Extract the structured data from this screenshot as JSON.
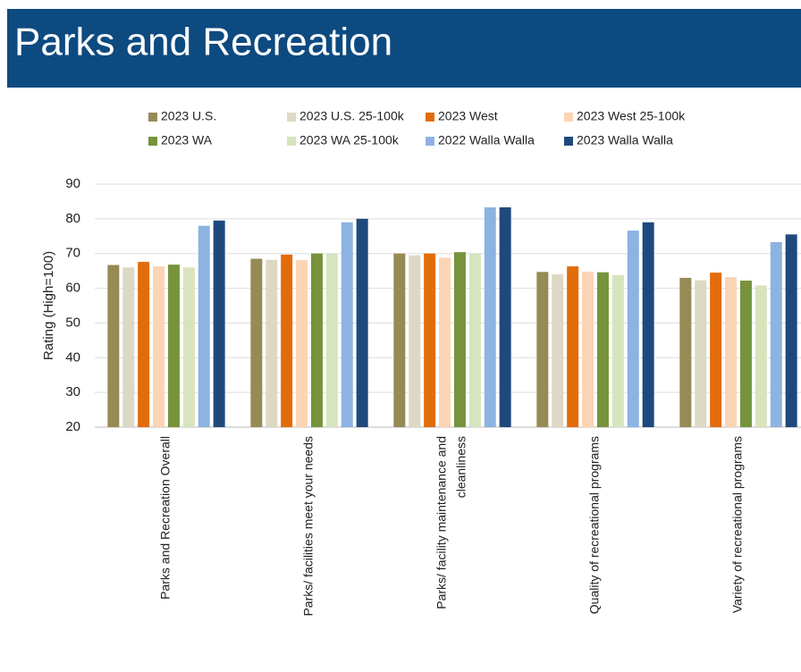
{
  "chart_data": {
    "type": "bar",
    "title": "Parks and Recreation",
    "y_label": "Rating (High=100)",
    "categories": [
      [
        "Parks and Recreation Overall"
      ],
      [
        "Parks/ facilities meet your needs"
      ],
      [
        "Parks/ facility maintenance and",
        "cleanliness"
      ],
      [
        "Quality of recreational programs"
      ],
      [
        "Variety of recreational programs"
      ]
    ],
    "series": [
      {
        "name": "2023 U.S.",
        "color": "#968a55",
        "values": [
          66.7,
          68.5,
          70,
          64.7,
          63
        ]
      },
      {
        "name": "2023 U.S. 25-100k",
        "color": "#ddd8c3",
        "values": [
          66,
          68.2,
          69.5,
          64,
          62.3
        ]
      },
      {
        "name": "2023 West",
        "color": "#e36c0a",
        "values": [
          67.6,
          69.7,
          70,
          66.3,
          64.5
        ]
      },
      {
        "name": "2023 West 25-100k",
        "color": "#fbd4b4",
        "values": [
          66.3,
          68.1,
          68.8,
          64.8,
          63.2
        ]
      },
      {
        "name": "2023 WA",
        "color": "#77933c",
        "values": [
          66.8,
          70,
          70.4,
          64.6,
          62.2
        ]
      },
      {
        "name": "2023 WA 25-100k",
        "color": "#d7e4bd",
        "values": [
          66,
          70,
          70,
          63.8,
          60.8
        ]
      },
      {
        "name": "2022 Walla Walla",
        "color": "#8db3e2",
        "values": [
          78,
          79,
          83.3,
          76.6,
          73.3
        ]
      },
      {
        "name": "2023 Walla Walla",
        "color": "#1f497d",
        "values": [
          79.5,
          80,
          83.3,
          79,
          75.5
        ]
      }
    ],
    "ylim": [
      20,
      90
    ],
    "yticks": [
      20,
      30,
      40,
      50,
      60,
      70,
      80,
      90
    ],
    "grid": true
  }
}
